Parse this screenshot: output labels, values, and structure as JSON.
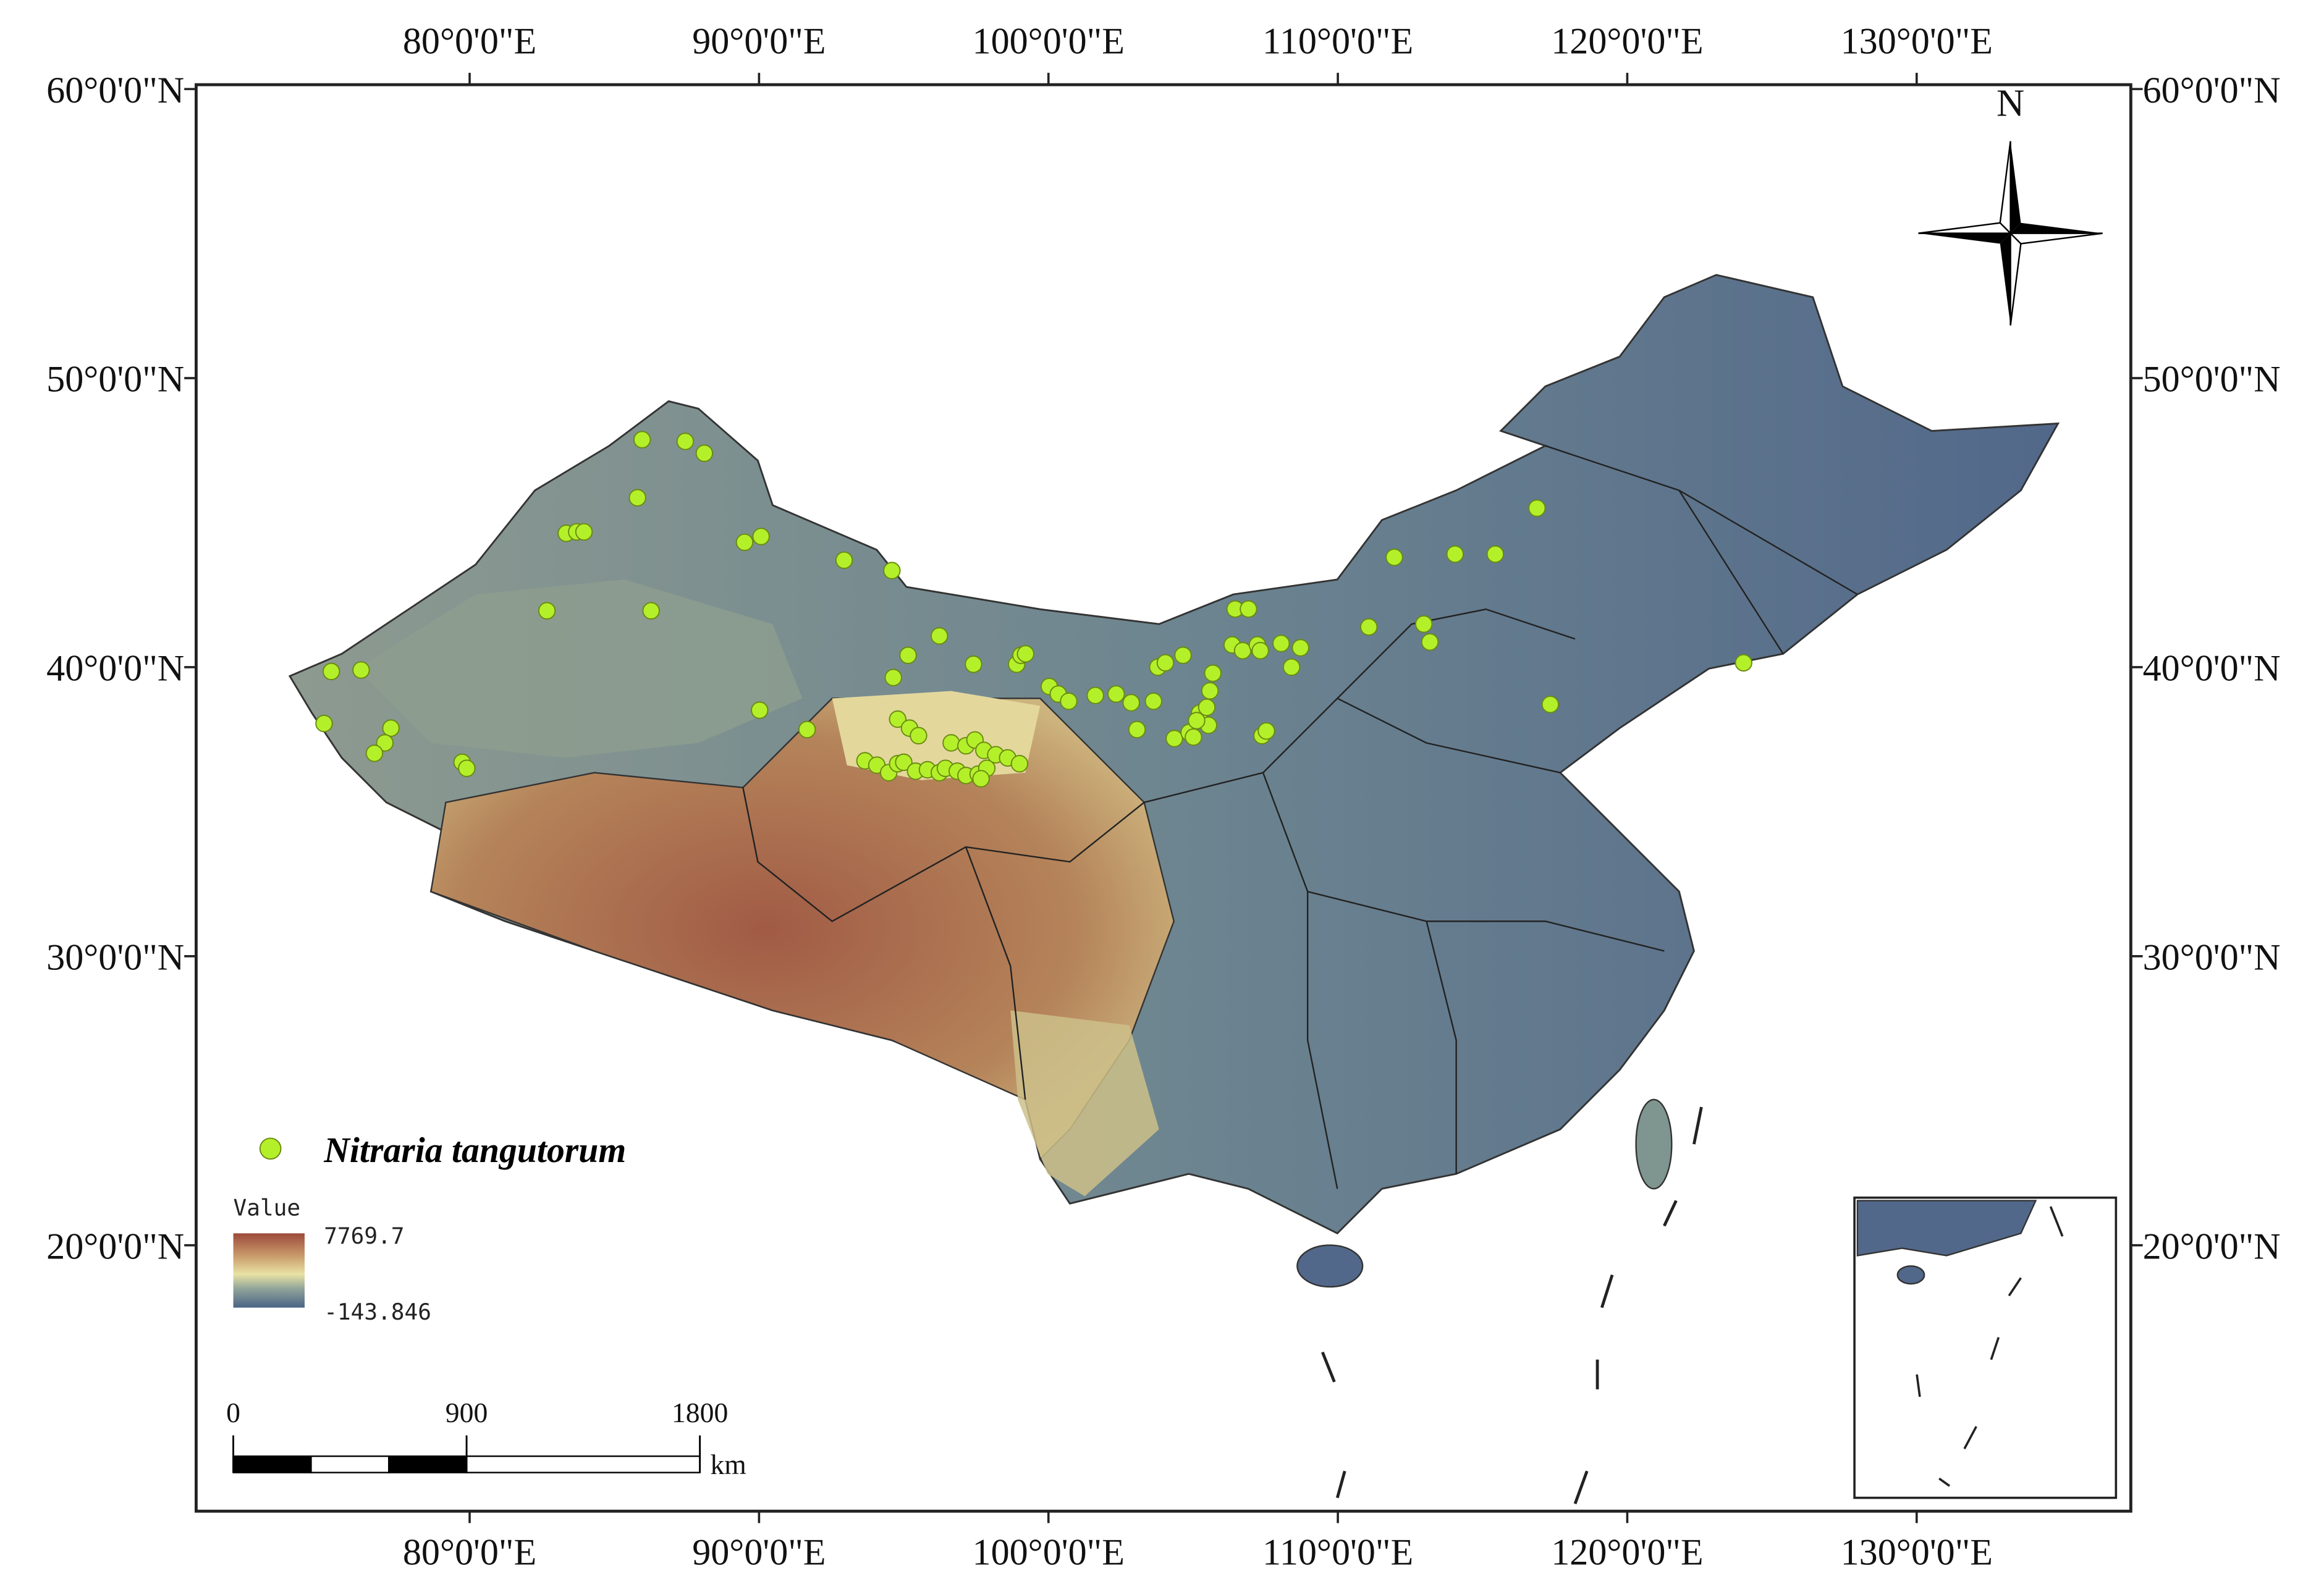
{
  "chart_data": {
    "type": "map",
    "xlim": [
      70.55,
      137.4
    ],
    "ylim": [
      10.8,
      60.15
    ],
    "xticks": [
      {
        "value": 80,
        "label": "80°0'0\"E"
      },
      {
        "value": 90,
        "label": "90°0'0\"E"
      },
      {
        "value": 100,
        "label": "100°0'0\"E"
      },
      {
        "value": 110,
        "label": "110°0'0\"E"
      },
      {
        "value": 120,
        "label": "120°0'0\"E"
      },
      {
        "value": 130,
        "label": "130°0'0\"E"
      }
    ],
    "yticks": [
      {
        "value": 20,
        "label": "20°0'0\"N"
      },
      {
        "value": 30,
        "label": "30°0'0\"N"
      },
      {
        "value": 40,
        "label": "40°0'0\"N"
      },
      {
        "value": 50,
        "label": "50°0'0\"N"
      },
      {
        "value": 60,
        "label": "60°0'0\"N"
      }
    ],
    "north": "N",
    "series": [
      {
        "name": "Nitraria tangutorum",
        "color": "#b4f02a",
        "lon": [
          85.96,
          87.45,
          88.11,
          85.8,
          83.34,
          83.7,
          83.95,
          89.5,
          90.07,
          92.94,
          94.59,
          82.67,
          86.27,
          75.22,
          76.25,
          74.97,
          77.28,
          77.07,
          76.71,
          79.74,
          79.9,
          90.02,
          91.66,
          95.15,
          94.64,
          96.23,
          97.41,
          98.9,
          99.05,
          99.21,
          100.03,
          100.34,
          100.7,
          101.62,
          102.34,
          102.86,
          103.63,
          103.78,
          104.04,
          104.65,
          103.06,
          104.35,
          104.86,
          105.22,
          105.47,
          105.58,
          105.68,
          105.53,
          105.12,
          105.01,
          107.38,
          107.53,
          106.45,
          106.91,
          106.35,
          106.71,
          107.22,
          107.32,
          108.04,
          108.71,
          108.4,
          111.07,
          111.95,
          114.05,
          115.44,
          116.88,
          112.97,
          113.18,
          117.34,
          124.02,
          93.66,
          94.07,
          94.48,
          94.79,
          95.0,
          95.41,
          95.82,
          96.23,
          96.44,
          96.85,
          97.15,
          97.57,
          97.87,
          96.64,
          97.15,
          97.46,
          97.77,
          98.18,
          98.59,
          99.0,
          94.79,
          95.2,
          95.51,
          97.67
        ],
        "lat": [
          47.87,
          47.81,
          47.4,
          45.86,
          44.63,
          44.68,
          44.68,
          44.32,
          44.52,
          43.7,
          43.34,
          41.95,
          41.95,
          39.85,
          39.9,
          38.05,
          37.89,
          37.38,
          37.02,
          36.71,
          36.5,
          38.51,
          37.84,
          40.41,
          39.64,
          41.08,
          40.1,
          40.1,
          40.41,
          40.46,
          39.33,
          39.07,
          38.82,
          39.02,
          39.07,
          38.77,
          38.82,
          40.0,
          40.15,
          40.41,
          37.84,
          37.53,
          37.74,
          38.41,
          38.61,
          39.18,
          39.79,
          37.99,
          38.15,
          37.58,
          37.63,
          37.79,
          42.01,
          42.01,
          40.77,
          40.57,
          40.77,
          40.57,
          40.82,
          40.67,
          40.0,
          41.39,
          43.8,
          43.91,
          43.91,
          45.5,
          41.49,
          40.87,
          38.71,
          40.15,
          36.76,
          36.61,
          36.35,
          36.66,
          36.71,
          36.4,
          36.45,
          36.35,
          36.5,
          36.4,
          36.25,
          36.3,
          36.5,
          37.38,
          37.28,
          37.48,
          37.12,
          36.97,
          36.86,
          36.66,
          38.2,
          37.89,
          37.63,
          36.14
        ]
      }
    ],
    "colorbar": {
      "title": "Value",
      "max": 7769.7,
      "min": -143.846
    },
    "scale_bar": {
      "ticks": [
        0,
        900,
        1800
      ],
      "unit": "km"
    }
  }
}
